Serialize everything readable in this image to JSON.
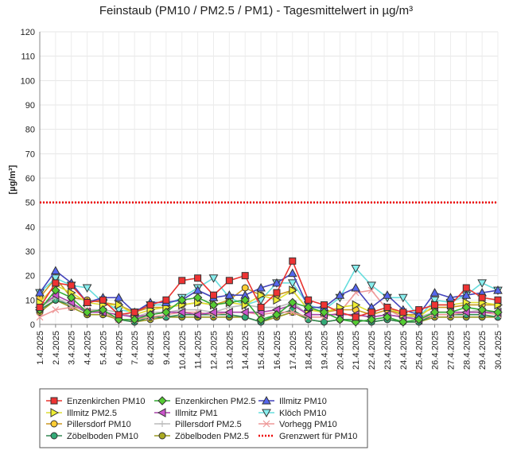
{
  "chart_data": {
    "type": "line",
    "title": "Feinstaub (PM10 / PM2.5 / PM1) -  Tagesmittelwert in µg/m³",
    "xlabel": "",
    "ylabel": "[µg/m³]",
    "ylim": [
      0,
      120
    ],
    "yticks": [
      0,
      10,
      20,
      30,
      40,
      50,
      60,
      70,
      80,
      90,
      100,
      110,
      120
    ],
    "grid": true,
    "legend_position": "bottom",
    "categories": [
      "1.4.2025",
      "2.4.2025",
      "3.4.2025",
      "4.4.2025",
      "5.4.2025",
      "6.4.2025",
      "7.4.2025",
      "8.4.2025",
      "9.4.2025",
      "10.4.2025",
      "11.4.2025",
      "12.4.2025",
      "13.4.2025",
      "14.4.2025",
      "15.4.2025",
      "16.4.2025",
      "17.4.2025",
      "18.4.2025",
      "19.4.2025",
      "20.4.2025",
      "21.4.2025",
      "22.4.2025",
      "23.4.2025",
      "24.4.2025",
      "25.4.2025",
      "26.4.2025",
      "27.4.2025",
      "28.4.2025",
      "29.4.2025",
      "30.4.2025"
    ],
    "series": [
      {
        "name": "Enzenkirchen PM10",
        "color": "#e8332f",
        "marker": "square",
        "fill": "#ee3333",
        "values": [
          7,
          17,
          16,
          9,
          10,
          4,
          5,
          8,
          10,
          18,
          19,
          12,
          18,
          20,
          7,
          13,
          26,
          10,
          8,
          5,
          3,
          5,
          7,
          5,
          6,
          8,
          8,
          15,
          11,
          10
        ]
      },
      {
        "name": "Enzenkirchen PM2.5",
        "color": "#33aa33",
        "marker": "diamond",
        "fill": "#55cc33",
        "values": [
          6,
          14,
          11,
          5,
          6,
          2,
          2,
          4,
          5,
          10,
          11,
          8,
          9,
          10,
          2,
          4,
          9,
          7,
          5,
          2,
          1,
          2,
          3,
          1,
          2,
          5,
          5,
          7,
          6,
          5
        ]
      },
      {
        "name": "Illmitz PM10",
        "color": "#4444bb",
        "marker": "triangle-up",
        "fill": "#5566ee",
        "values": [
          13,
          22,
          17,
          9,
          11,
          11,
          5,
          9,
          9,
          10,
          14,
          11,
          12,
          12,
          15,
          17,
          21,
          7,
          7,
          12,
          15,
          7,
          12,
          6,
          4,
          13,
          11,
          12,
          13,
          14
        ]
      },
      {
        "name": "Illmitz PM2.5",
        "color": "#dddd33",
        "marker": "triangle-right",
        "fill": "#eeee33",
        "values": [
          9,
          16,
          13,
          9,
          8,
          8,
          4,
          6,
          7,
          8,
          9,
          8,
          9,
          8,
          12,
          10,
          14,
          6,
          5,
          7,
          8,
          5,
          7,
          4,
          3,
          8,
          8,
          9,
          9,
          8
        ]
      },
      {
        "name": "Illmitz PM1",
        "color": "#aa44aa",
        "marker": "triangle-left",
        "fill": "#cc55cc",
        "values": [
          7,
          12,
          9,
          5,
          5,
          4,
          3,
          4,
          5,
          5,
          4,
          5,
          5,
          5,
          5,
          6,
          8,
          4,
          4,
          4,
          4,
          3,
          4,
          3,
          2,
          5,
          5,
          5,
          5,
          5
        ]
      },
      {
        "name": "Klöch PM10",
        "color": "#66dddd",
        "marker": "triangle-down",
        "fill": "#88eeee",
        "values": [
          13,
          19,
          16,
          15,
          9,
          6,
          5,
          8,
          8,
          11,
          15,
          19,
          11,
          8,
          10,
          17,
          17,
          8,
          6,
          11,
          23,
          16,
          11,
          11,
          3,
          10,
          9,
          12,
          17,
          14
        ]
      },
      {
        "name": "Pillersdorf PM10",
        "color": "#cc9922",
        "marker": "circle",
        "fill": "#ffcc33",
        "values": [
          11,
          19,
          11,
          10,
          9,
          8,
          5,
          7,
          7,
          8,
          9,
          8,
          10,
          15,
          12,
          12,
          14,
          6,
          5,
          6,
          6,
          4,
          6,
          4,
          4,
          7,
          7,
          8,
          8,
          8
        ]
      },
      {
        "name": "Pillersdorf PM2.5",
        "color": "#bbbbbb",
        "marker": "plus",
        "fill": "#bbbbbb",
        "values": [
          7,
          11,
          8,
          6,
          6,
          5,
          3,
          5,
          5,
          6,
          6,
          5,
          7,
          8,
          7,
          7,
          9,
          4,
          4,
          4,
          4,
          3,
          4,
          3,
          3,
          5,
          5,
          5,
          6,
          5
        ]
      },
      {
        "name": "Vorhegg PM10",
        "color": "#ee9999",
        "marker": "cross",
        "fill": "#ee9999",
        "values": [
          3,
          6,
          7,
          6,
          5,
          2,
          2,
          3,
          4,
          5,
          5,
          4,
          5,
          5,
          4,
          5,
          5,
          3,
          3,
          5,
          13,
          14,
          6,
          3,
          2,
          4,
          4,
          5,
          5,
          4
        ]
      },
      {
        "name": "Zöbelboden PM10",
        "color": "#338855",
        "marker": "circle",
        "fill": "#33aa77",
        "values": [
          6,
          10,
          8,
          5,
          5,
          2,
          1,
          3,
          3,
          4,
          4,
          4,
          4,
          3,
          1,
          4,
          6,
          2,
          1,
          2,
          2,
          1,
          2,
          1,
          1,
          4,
          4,
          4,
          4,
          3
        ]
      },
      {
        "name": "Zöbelboden PM2.5",
        "color": "#999922",
        "marker": "circle",
        "fill": "#aaaa22",
        "values": [
          5,
          10,
          7,
          4,
          4,
          2,
          1,
          2,
          3,
          3,
          3,
          3,
          3,
          3,
          1,
          3,
          5,
          2,
          1,
          2,
          2,
          1,
          2,
          1,
          1,
          3,
          3,
          3,
          3,
          3
        ]
      }
    ],
    "threshold": {
      "name": "Grenzwert für PM10",
      "value": 50,
      "color": "#ee0000"
    }
  }
}
